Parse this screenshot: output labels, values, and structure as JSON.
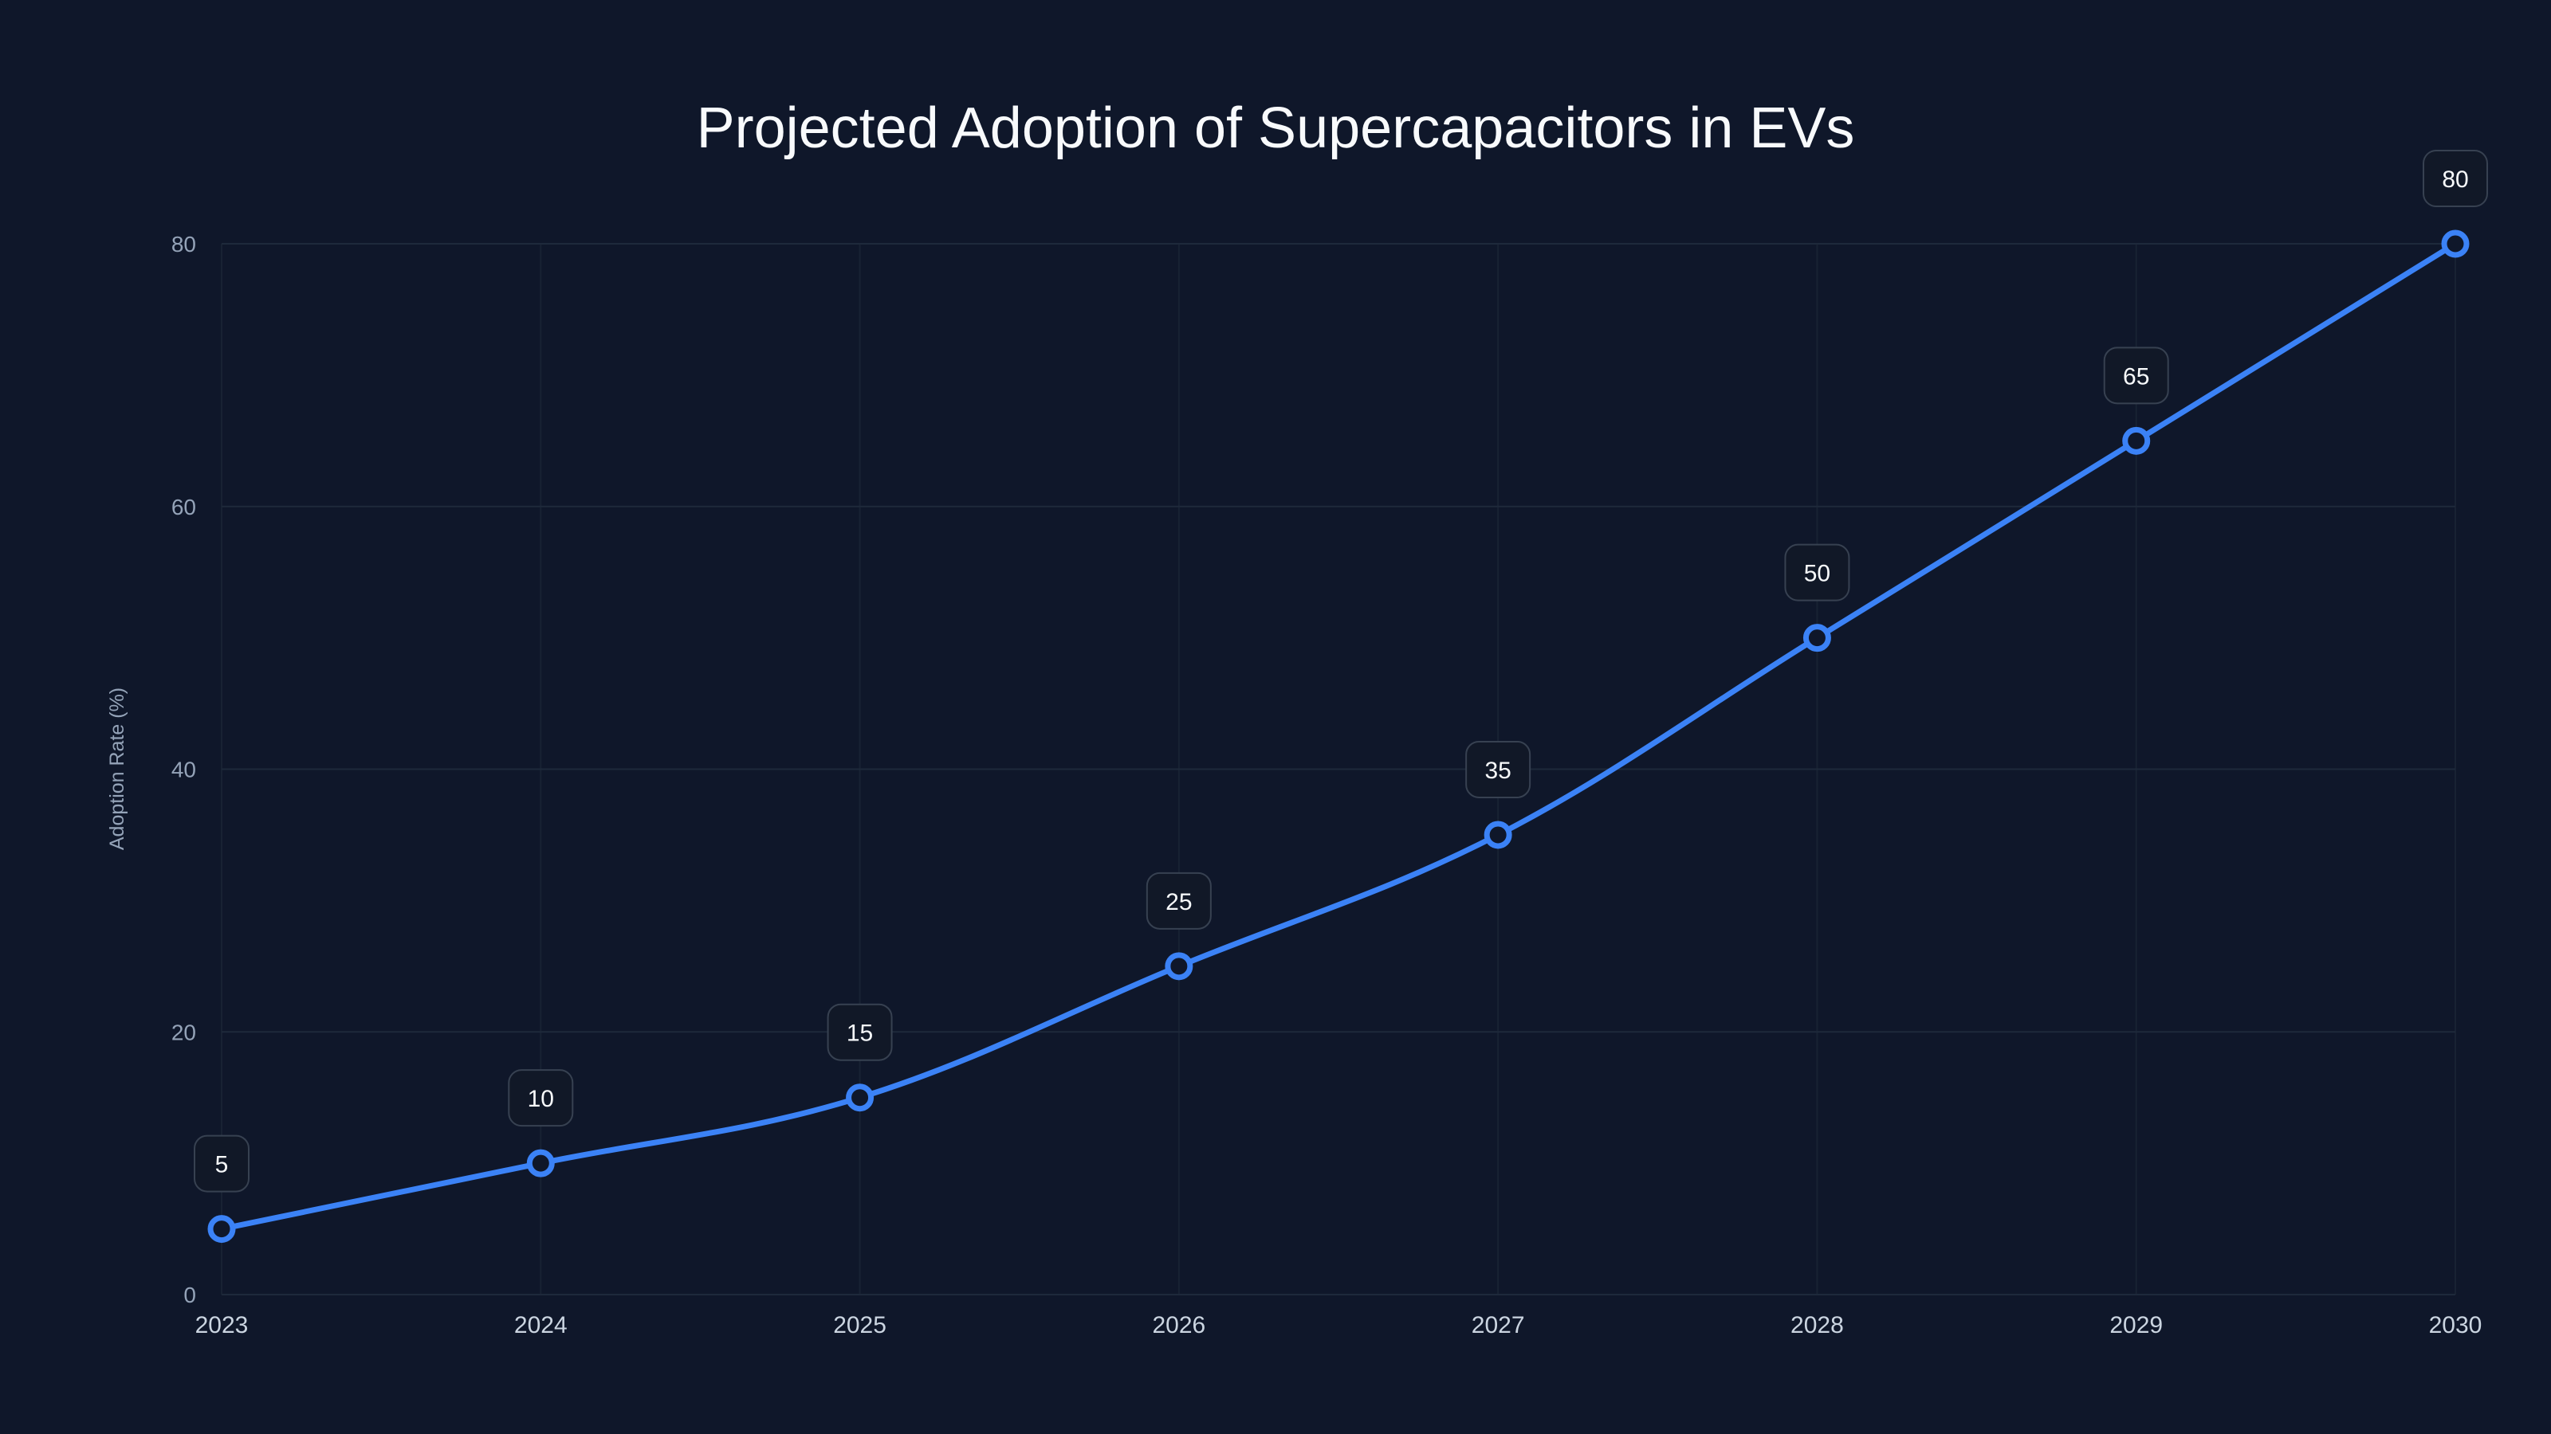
{
  "chart_data": {
    "type": "line",
    "title": "Projected Adoption of Supercapacitors in EVs",
    "xlabel": "",
    "ylabel": "Adoption Rate (%)",
    "categories": [
      "2023",
      "2024",
      "2025",
      "2026",
      "2027",
      "2028",
      "2029",
      "2030"
    ],
    "series": [
      {
        "name": "Adoption Rate",
        "values": [
          5,
          10,
          15,
          25,
          35,
          50,
          65,
          80
        ]
      }
    ],
    "ylim": [
      0,
      80
    ],
    "yticks": [
      0,
      20,
      40,
      60,
      80
    ],
    "grid": true,
    "data_labels": true,
    "colors": {
      "line": "#3b82f6",
      "background": "#0f172a"
    }
  }
}
